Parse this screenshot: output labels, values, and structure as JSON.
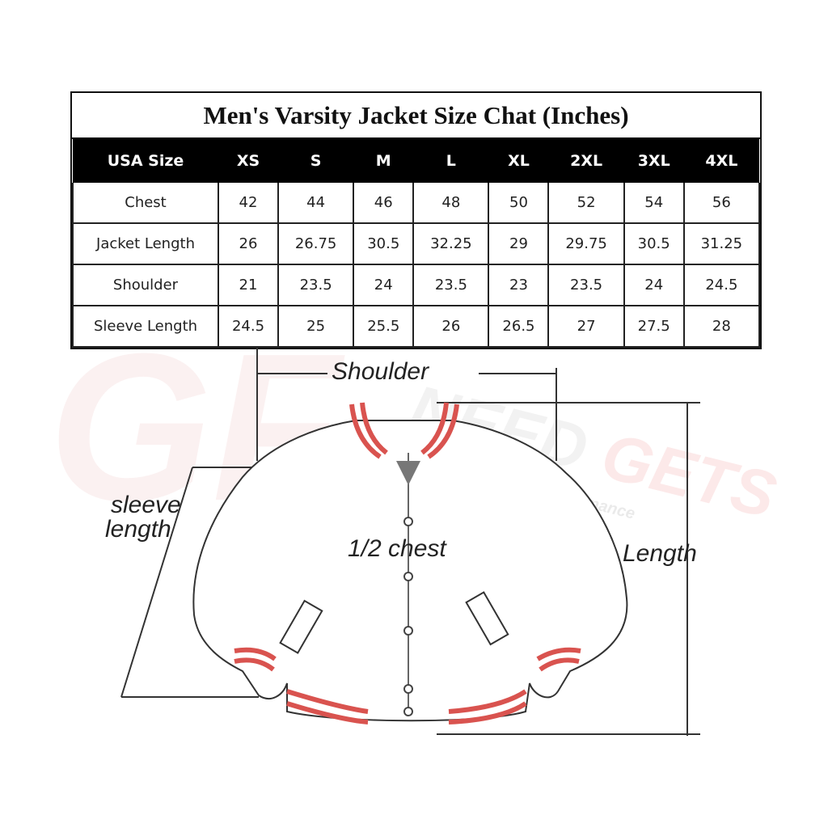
{
  "title": "Men's Varsity Jacket Size Chat (Inches)",
  "header": [
    "USA Size",
    "XS",
    "S",
    "M",
    "L",
    "XL",
    "2XL",
    "3XL",
    "4XL"
  ],
  "rows": [
    {
      "label": "Chest",
      "values": [
        "42",
        "44",
        "46",
        "48",
        "50",
        "52",
        "54",
        "56"
      ]
    },
    {
      "label": "Jacket Length",
      "values": [
        "26",
        "26.75",
        "30.5",
        "32.25",
        "29",
        "29.75",
        "30.5",
        "31.25"
      ]
    },
    {
      "label": "Shoulder",
      "values": [
        "21",
        "23.5",
        "24",
        "23.5",
        "23",
        "23.5",
        "24",
        "24.5"
      ]
    },
    {
      "label": "Sleeve Length",
      "values": [
        "24.5",
        "25",
        "25.5",
        "26",
        "26.5",
        "27",
        "27.5",
        "28"
      ]
    }
  ],
  "diagram": {
    "shoulder": "Shoulder",
    "sleeve1": "sleeve",
    "sleeve2": "length",
    "chest": "1/2 chest",
    "length": "Length"
  },
  "watermark": {
    "brand": "NEED GETS FIT",
    "tagline": "Safety & Performance",
    "monogram": "GF"
  },
  "colors": {
    "stripe": "#d9534f",
    "header_bg": "#000000"
  }
}
